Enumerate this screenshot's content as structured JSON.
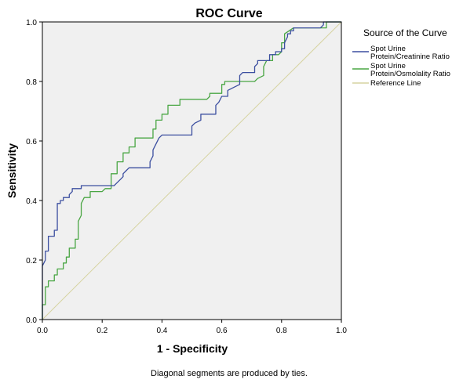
{
  "chart_data": {
    "type": "line",
    "title": "ROC Curve",
    "xlabel": "1 - Specificity",
    "ylabel": "Sensitivity",
    "xlim": [
      0,
      1
    ],
    "ylim": [
      0,
      1
    ],
    "x_ticks": [
      "0.0",
      "0.2",
      "0.4",
      "0.6",
      "0.8",
      "1.0"
    ],
    "y_ticks": [
      "0.0",
      "0.2",
      "0.4",
      "0.6",
      "0.8",
      "1.0"
    ],
    "grid": false,
    "background_color": "#f0f0f0",
    "legend_title": "Source of the Curve",
    "legend_placement": "right",
    "footnote": "Diagonal segments are produced by ties.",
    "series": [
      {
        "name": "Spot Urine Protein/Creatinine Ratio",
        "legend_lines": [
          "Spot Urine",
          "Protein/Creatinine Ratio"
        ],
        "color": "#3c4fa0",
        "points": [
          [
            0,
            0
          ],
          [
            0,
            0.18
          ],
          [
            0.01,
            0.2
          ],
          [
            0.01,
            0.23
          ],
          [
            0.02,
            0.23
          ],
          [
            0.02,
            0.28
          ],
          [
            0.04,
            0.28
          ],
          [
            0.04,
            0.3
          ],
          [
            0.05,
            0.3
          ],
          [
            0.05,
            0.39
          ],
          [
            0.06,
            0.39
          ],
          [
            0.06,
            0.4
          ],
          [
            0.07,
            0.4
          ],
          [
            0.07,
            0.41
          ],
          [
            0.09,
            0.41
          ],
          [
            0.09,
            0.42
          ],
          [
            0.1,
            0.43
          ],
          [
            0.1,
            0.44
          ],
          [
            0.13,
            0.44
          ],
          [
            0.13,
            0.45
          ],
          [
            0.24,
            0.45
          ],
          [
            0.25,
            0.46
          ],
          [
            0.26,
            0.47
          ],
          [
            0.27,
            0.48
          ],
          [
            0.27,
            0.49
          ],
          [
            0.28,
            0.5
          ],
          [
            0.29,
            0.51
          ],
          [
            0.36,
            0.51
          ],
          [
            0.36,
            0.53
          ],
          [
            0.37,
            0.55
          ],
          [
            0.37,
            0.57
          ],
          [
            0.38,
            0.59
          ],
          [
            0.39,
            0.61
          ],
          [
            0.4,
            0.62
          ],
          [
            0.5,
            0.62
          ],
          [
            0.5,
            0.65
          ],
          [
            0.51,
            0.66
          ],
          [
            0.53,
            0.67
          ],
          [
            0.53,
            0.69
          ],
          [
            0.58,
            0.69
          ],
          [
            0.58,
            0.72
          ],
          [
            0.59,
            0.73
          ],
          [
            0.6,
            0.75
          ],
          [
            0.62,
            0.75
          ],
          [
            0.62,
            0.77
          ],
          [
            0.64,
            0.78
          ],
          [
            0.66,
            0.79
          ],
          [
            0.66,
            0.82
          ],
          [
            0.67,
            0.83
          ],
          [
            0.71,
            0.83
          ],
          [
            0.71,
            0.85
          ],
          [
            0.72,
            0.86
          ],
          [
            0.72,
            0.87
          ],
          [
            0.76,
            0.87
          ],
          [
            0.76,
            0.89
          ],
          [
            0.78,
            0.89
          ],
          [
            0.78,
            0.9
          ],
          [
            0.8,
            0.9
          ],
          [
            0.8,
            0.91
          ],
          [
            0.81,
            0.91
          ],
          [
            0.81,
            0.93
          ],
          [
            0.82,
            0.95
          ],
          [
            0.82,
            0.96
          ],
          [
            0.83,
            0.96
          ],
          [
            0.83,
            0.97
          ],
          [
            0.84,
            0.97
          ],
          [
            0.84,
            0.98
          ],
          [
            0.93,
            0.98
          ],
          [
            0.94,
            0.99
          ],
          [
            0.94,
            1.0
          ],
          [
            1.0,
            1.0
          ]
        ]
      },
      {
        "name": "Spot Urine Protein/Osmolality Ratio",
        "legend_lines": [
          "Spot Urine",
          "Protein/Osmolality Ratio"
        ],
        "color": "#4aa644",
        "points": [
          [
            0,
            0
          ],
          [
            0,
            0.05
          ],
          [
            0.01,
            0.05
          ],
          [
            0.01,
            0.11
          ],
          [
            0.02,
            0.11
          ],
          [
            0.02,
            0.13
          ],
          [
            0.04,
            0.13
          ],
          [
            0.04,
            0.15
          ],
          [
            0.05,
            0.15
          ],
          [
            0.05,
            0.17
          ],
          [
            0.07,
            0.17
          ],
          [
            0.07,
            0.19
          ],
          [
            0.08,
            0.19
          ],
          [
            0.08,
            0.21
          ],
          [
            0.09,
            0.21
          ],
          [
            0.09,
            0.24
          ],
          [
            0.11,
            0.24
          ],
          [
            0.11,
            0.27
          ],
          [
            0.12,
            0.27
          ],
          [
            0.12,
            0.33
          ],
          [
            0.13,
            0.35
          ],
          [
            0.13,
            0.39
          ],
          [
            0.14,
            0.41
          ],
          [
            0.16,
            0.41
          ],
          [
            0.16,
            0.43
          ],
          [
            0.2,
            0.43
          ],
          [
            0.21,
            0.44
          ],
          [
            0.23,
            0.44
          ],
          [
            0.23,
            0.47
          ],
          [
            0.23,
            0.49
          ],
          [
            0.25,
            0.49
          ],
          [
            0.25,
            0.53
          ],
          [
            0.27,
            0.53
          ],
          [
            0.27,
            0.56
          ],
          [
            0.29,
            0.56
          ],
          [
            0.29,
            0.58
          ],
          [
            0.31,
            0.58
          ],
          [
            0.31,
            0.61
          ],
          [
            0.37,
            0.61
          ],
          [
            0.37,
            0.64
          ],
          [
            0.38,
            0.64
          ],
          [
            0.38,
            0.67
          ],
          [
            0.4,
            0.67
          ],
          [
            0.4,
            0.69
          ],
          [
            0.42,
            0.69
          ],
          [
            0.42,
            0.72
          ],
          [
            0.46,
            0.72
          ],
          [
            0.46,
            0.74
          ],
          [
            0.55,
            0.74
          ],
          [
            0.56,
            0.75
          ],
          [
            0.56,
            0.76
          ],
          [
            0.6,
            0.76
          ],
          [
            0.6,
            0.79
          ],
          [
            0.61,
            0.79
          ],
          [
            0.61,
            0.8
          ],
          [
            0.71,
            0.8
          ],
          [
            0.72,
            0.81
          ],
          [
            0.74,
            0.82
          ],
          [
            0.74,
            0.85
          ],
          [
            0.75,
            0.87
          ],
          [
            0.77,
            0.87
          ],
          [
            0.77,
            0.89
          ],
          [
            0.79,
            0.89
          ],
          [
            0.8,
            0.9
          ],
          [
            0.8,
            0.93
          ],
          [
            0.81,
            0.93
          ],
          [
            0.81,
            0.96
          ],
          [
            0.84,
            0.98
          ],
          [
            0.95,
            0.98
          ],
          [
            0.95,
            1.0
          ],
          [
            1.0,
            1.0
          ]
        ]
      },
      {
        "name": "Reference Line",
        "legend_lines": [
          "Reference Line"
        ],
        "color": "#d6d3a0",
        "points": [
          [
            0,
            0
          ],
          [
            1,
            1
          ]
        ]
      }
    ]
  }
}
